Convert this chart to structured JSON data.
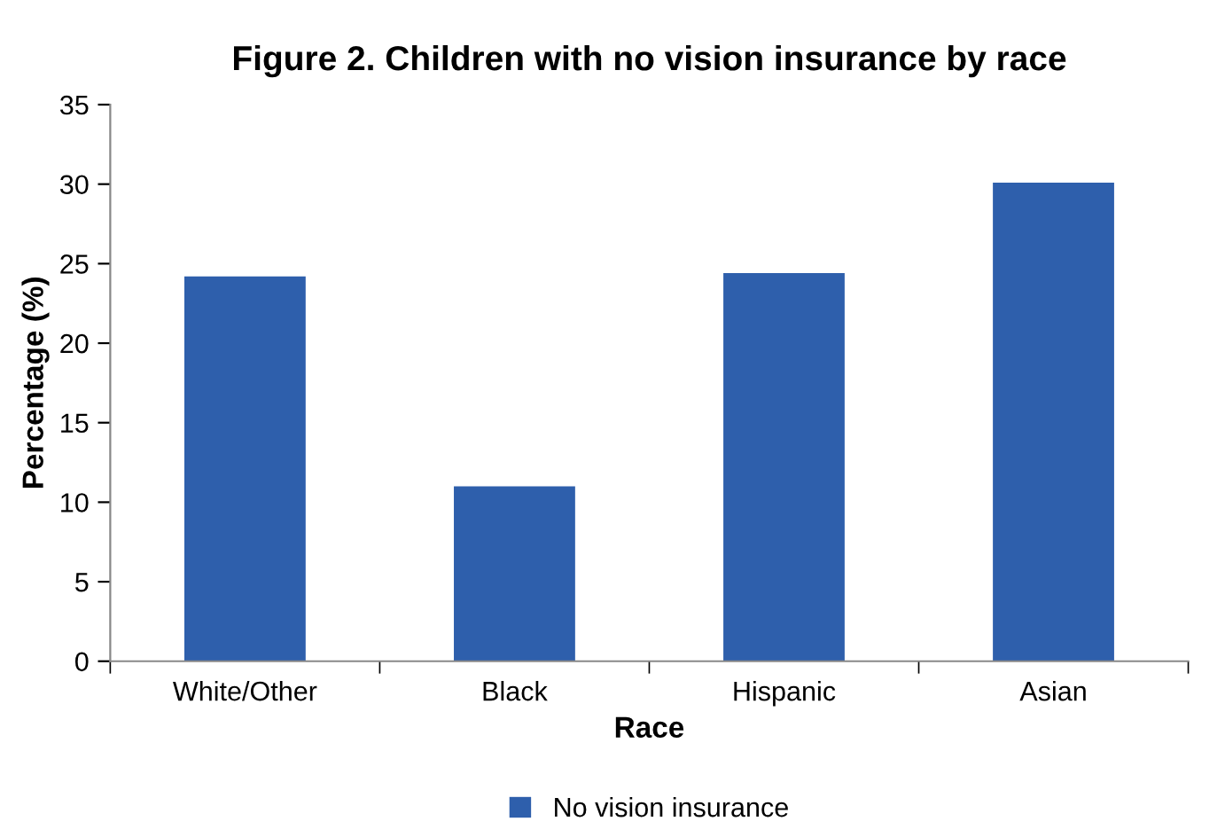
{
  "chart_data": {
    "type": "bar",
    "title": "Figure 2. Children with no vision insurance by race",
    "xlabel": "Race",
    "ylabel": "Percentage (%)",
    "categories": [
      "White/Other",
      "Black",
      "Hispanic",
      "Asian"
    ],
    "series": [
      {
        "name": "No vision insurance",
        "color": "#2e5fac",
        "values": [
          24.2,
          11.0,
          24.4,
          30.1
        ]
      }
    ],
    "ylim": [
      0,
      35
    ],
    "yticks": [
      0,
      5,
      10,
      15,
      20,
      25,
      30,
      35
    ],
    "grid": false,
    "legend": "bottom"
  }
}
